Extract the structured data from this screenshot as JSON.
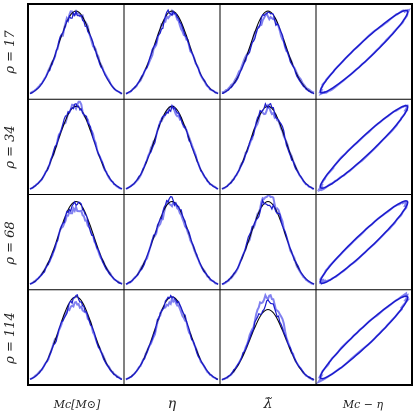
{
  "figure": {
    "rows": [
      {
        "label": "ρ = 17"
      },
      {
        "label": "ρ = 34"
      },
      {
        "label": "ρ = 68"
      },
      {
        "label": "ρ = 114"
      }
    ],
    "columns": [
      {
        "label": "Mc[M⊙]",
        "type": "histogram"
      },
      {
        "label": "η",
        "type": "histogram"
      },
      {
        "label": "λ̃",
        "type": "histogram"
      },
      {
        "label": "Mc − η",
        "type": "contour"
      }
    ],
    "colors": {
      "frame": "#000000",
      "grid": "#000000",
      "theory": "#1a1acc",
      "empirical": "#8080f0",
      "reference": "#000000",
      "background": "#ffffff"
    }
  },
  "chart_data": {
    "type": "line",
    "layout": "4x4 grid of marginal distributions and 2D contours",
    "panels": [
      {
        "row": 0,
        "col": 0,
        "kind": "gaussian",
        "ref_peak": 1.0,
        "emp_peak": 0.98,
        "ref_width": 1.0,
        "emp_width": 1.02
      },
      {
        "row": 0,
        "col": 1,
        "kind": "gaussian",
        "ref_peak": 1.0,
        "emp_peak": 0.97,
        "ref_width": 1.0,
        "emp_width": 1.0
      },
      {
        "row": 0,
        "col": 2,
        "kind": "gaussian",
        "ref_peak": 1.0,
        "emp_peak": 0.93,
        "ref_width": 1.0,
        "emp_width": 1.05
      },
      {
        "row": 0,
        "col": 3,
        "kind": "ellipse",
        "correlation": 0.97
      },
      {
        "row": 1,
        "col": 0,
        "kind": "gaussian",
        "ref_peak": 1.0,
        "emp_peak": 1.02,
        "ref_width": 1.0,
        "emp_width": 1.0
      },
      {
        "row": 1,
        "col": 1,
        "kind": "gaussian",
        "ref_peak": 1.0,
        "emp_peak": 0.99,
        "ref_width": 1.0,
        "emp_width": 1.0
      },
      {
        "row": 1,
        "col": 2,
        "kind": "gaussian",
        "ref_peak": 1.0,
        "emp_peak": 0.98,
        "ref_width": 1.0,
        "emp_width": 1.0
      },
      {
        "row": 1,
        "col": 3,
        "kind": "ellipse",
        "correlation": 0.97
      },
      {
        "row": 2,
        "col": 0,
        "kind": "gaussian",
        "ref_peak": 1.0,
        "emp_peak": 0.93,
        "ref_width": 1.0,
        "emp_width": 1.02
      },
      {
        "row": 2,
        "col": 1,
        "kind": "gaussian",
        "ref_peak": 1.0,
        "emp_peak": 0.98,
        "ref_width": 1.0,
        "emp_width": 1.0
      },
      {
        "row": 2,
        "col": 2,
        "kind": "gaussian",
        "ref_peak": 1.0,
        "emp_peak": 1.05,
        "ref_width": 1.0,
        "emp_width": 0.98
      },
      {
        "row": 2,
        "col": 3,
        "kind": "ellipse",
        "correlation": 0.97
      },
      {
        "row": 3,
        "col": 0,
        "kind": "gaussian",
        "ref_peak": 1.0,
        "emp_peak": 0.92,
        "ref_width": 1.0,
        "emp_width": 1.03
      },
      {
        "row": 3,
        "col": 1,
        "kind": "gaussian",
        "ref_peak": 1.0,
        "emp_peak": 0.97,
        "ref_width": 1.0,
        "emp_width": 1.0
      },
      {
        "row": 3,
        "col": 2,
        "kind": "gaussian",
        "ref_peak": 0.85,
        "emp_peak": 0.98,
        "ref_width": 1.0,
        "emp_width": 0.97
      },
      {
        "row": 3,
        "col": 3,
        "kind": "ellipse",
        "correlation": 0.97
      }
    ],
    "axes": {
      "ticks": "none",
      "grid": "none"
    }
  }
}
